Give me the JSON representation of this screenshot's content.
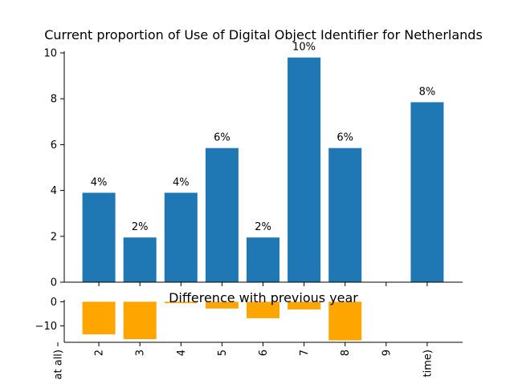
{
  "chart_data": [
    {
      "type": "bar",
      "title": "Current proportion of Use of Digital Object Identifier for Netherlands",
      "categories": [
        "at all)",
        "2",
        "3",
        "4",
        "5",
        "6",
        "7",
        "8",
        "9",
        "time)"
      ],
      "values": [
        0,
        3.9,
        1.95,
        3.9,
        5.85,
        1.95,
        9.8,
        5.85,
        0,
        7.85
      ],
      "data_labels": [
        "",
        "4%",
        "2%",
        "4%",
        "6%",
        "2%",
        "10%",
        "6%",
        "",
        "8%"
      ],
      "ylim": [
        0,
        10
      ],
      "yticks": [
        0,
        2,
        4,
        6,
        8,
        10
      ],
      "color": "#1f77b4",
      "grid": false
    },
    {
      "type": "bar",
      "title": "Difference with previous year",
      "categories": [
        "at all)",
        "2",
        "3",
        "4",
        "5",
        "6",
        "7",
        "8",
        "9",
        "time)"
      ],
      "values": [
        0,
        -13.5,
        -15.5,
        -0.6,
        -2.8,
        -6.8,
        -3.2,
        -16,
        0,
        0
      ],
      "ylim": [
        -16.8,
        0.8
      ],
      "yticks": [
        0,
        -10
      ],
      "ytick_labels": [
        "0",
        "−10"
      ],
      "color": "#ffa500",
      "grid": false
    }
  ]
}
